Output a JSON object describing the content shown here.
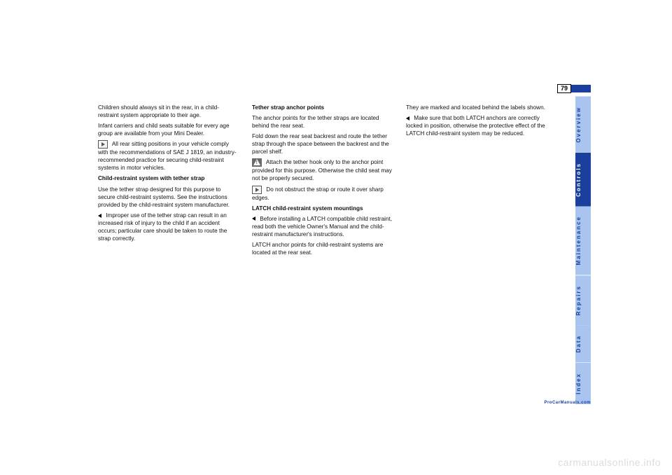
{
  "page_number": "79",
  "watermark": "carmanualsonline.info",
  "footer": "ProCarManuals.com",
  "tabs": [
    {
      "label": "Overview",
      "active": false
    },
    {
      "label": "Controls",
      "active": true
    },
    {
      "label": "Maintenance",
      "active": false
    },
    {
      "label": "Repairs",
      "active": false
    },
    {
      "label": "Data",
      "active": false
    },
    {
      "label": "Index",
      "active": false
    }
  ],
  "col1": {
    "p1": "Children should always sit in the rear, in a child-restraint system appropriate to their age.",
    "p2": "Infant carriers and child seats suitable for every age group are available from your Mini Dealer.",
    "note_label": "Note:",
    "note_text": "All rear sitting positions in your vehicle comply with the recommendations of SAE J 1819, an industry-recommended practice for securing child-restraint systems in motor vehicles.",
    "h1": "Child-restraint system with tether strap",
    "p3": "Use the tether strap designed for this purpose to secure child-restraint systems. See the instructions provided by the child-restraint system manufacturer.",
    "caution": "Improper use of the tether strap can result in an increased risk of injury to the child if an accident occurs; particular care should be taken to route the strap correctly."
  },
  "col2": {
    "h1": "Tether strap anchor points",
    "p1": "The anchor points for the tether straps are located behind the rear seat.",
    "p2": "Fold down the rear seat backrest and route the tether strap through the space between the backrest and the parcel shelf.",
    "warn1": "Attach the tether hook only to the anchor point provided for this purpose. Otherwise the child seat may not be properly secured.",
    "note_label": "Note:",
    "note_text": "Do not obstruct the strap or route it over sharp edges.",
    "h2": "LATCH child-restraint system mountings",
    "caution": "Before installing a LATCH compatible child restraint, read both the vehicle Owner's Manual and the child-restraint manufacturer's instructions.",
    "p3": "LATCH anchor points for child-restraint systems are located at the rear seat."
  },
  "col3": {
    "p1": "They are marked and located behind the labels shown.",
    "caution": "Make sure that both LATCH anchors are correctly locked in position, otherwise the protective effect of the LATCH child-restraint system may be reduced."
  },
  "colors": {
    "brand_blue": "#1a3f9c",
    "tab_light": "#a9c5ef",
    "text": "#111111",
    "watermark": "#dcdcdc",
    "icon_gray": "#6b6b6b"
  }
}
